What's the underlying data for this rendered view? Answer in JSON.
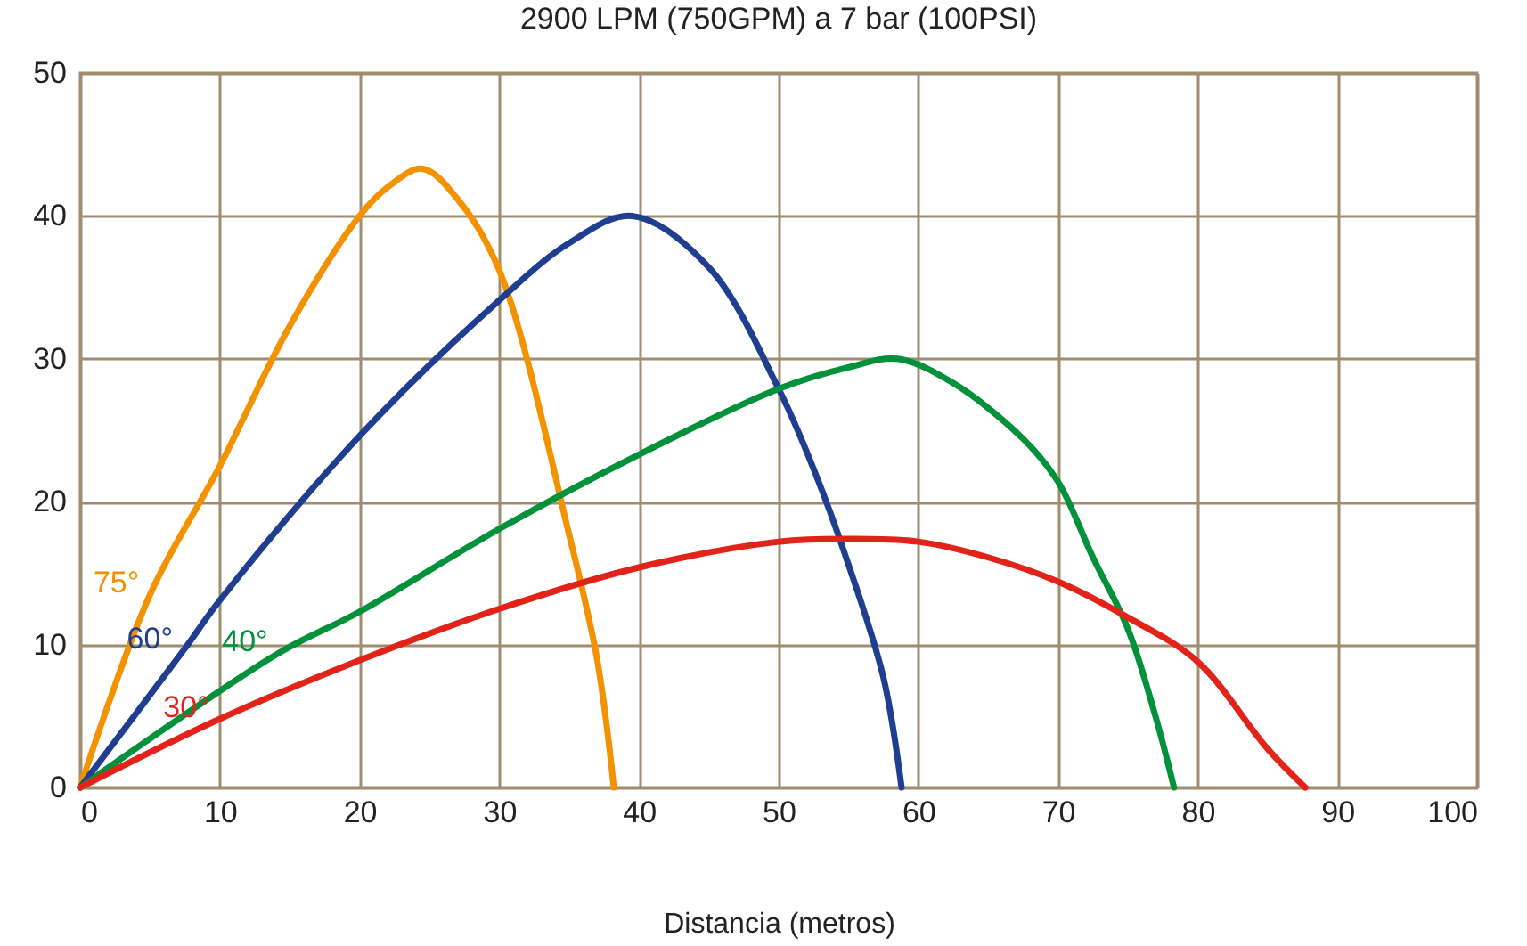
{
  "chart_data": {
    "type": "line",
    "title": "2900 LPM (750GPM) a 7 bar (100PSI)",
    "xlabel": "Distancia (metros)",
    "xlim": [
      0,
      100
    ],
    "xticks": [
      0,
      10,
      20,
      30,
      40,
      50,
      60,
      70,
      80,
      90,
      100
    ],
    "ylim": [
      0,
      50
    ],
    "yticks": [
      0,
      10,
      20,
      30,
      40,
      50
    ],
    "grid": true,
    "legend": false,
    "series": [
      {
        "name": "75°",
        "color": "#f39200",
        "x": [
          0,
          5,
          10,
          15,
          20,
          22,
          24.5,
          27,
          30,
          35,
          37,
          38.2
        ],
        "values": [
          0,
          13.5,
          22.5,
          32.3,
          40,
          42,
          43.3,
          41.2,
          36.2,
          17.7,
          9,
          0
        ]
      },
      {
        "name": "60°",
        "color": "#1f3e8f",
        "x": [
          0,
          7.4,
          10,
          20,
          30,
          35,
          39.5,
          45,
          50,
          52.5,
          55,
          57.5,
          58.8
        ],
        "values": [
          0,
          9.6,
          13.1,
          24.6,
          34.1,
          38.1,
          40,
          36.4,
          27.9,
          22.3,
          15.6,
          7.7,
          0
        ]
      },
      {
        "name": "40°",
        "color": "#00913a",
        "x": [
          0,
          14.2,
          20,
          30,
          40,
          50,
          55,
          58.5,
          62.5,
          67.5,
          70,
          72.5,
          75,
          77,
          78.3
        ],
        "values": [
          0,
          9.4,
          12.3,
          18.1,
          23.3,
          27.9,
          29.4,
          30,
          28.3,
          24.4,
          21.4,
          16.1,
          11.1,
          4.9,
          0
        ]
      },
      {
        "name": "30°",
        "color": "#e2231a",
        "x": [
          0,
          10,
          20,
          30,
          40,
          50,
          55,
          60,
          65,
          70,
          75,
          80,
          85,
          87.7
        ],
        "values": [
          0,
          4.8,
          8.9,
          12.5,
          15.4,
          17.2,
          17.4,
          17.2,
          16.1,
          14.4,
          11.9,
          8.8,
          2.7,
          0
        ]
      }
    ]
  }
}
